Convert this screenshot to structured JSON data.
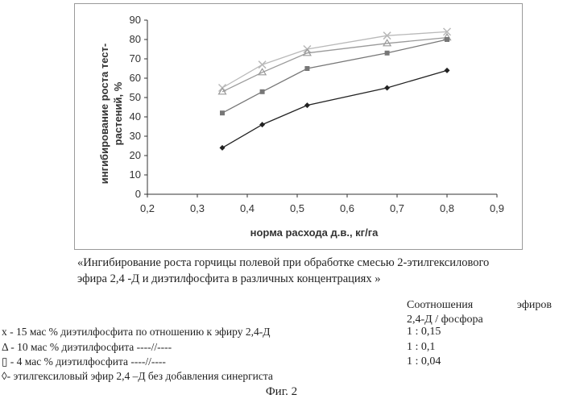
{
  "chart_data": {
    "type": "line",
    "xlabel": "норма расхода д.в., кг/га",
    "ylabel_line1": "ингибирование роста тест-",
    "ylabel_line2": "растений, %",
    "xlim": [
      0.2,
      0.9
    ],
    "ylim": [
      0,
      90
    ],
    "xticks": [
      "0,2",
      "0,3",
      "0,4",
      "0,5",
      "0,6",
      "0,7",
      "0,8",
      "0,9"
    ],
    "yticks": [
      "0",
      "10",
      "20",
      "30",
      "40",
      "50",
      "60",
      "70",
      "80",
      "90"
    ],
    "x": [
      0.35,
      0.43,
      0.52,
      0.68,
      0.8
    ],
    "series": [
      {
        "name": "x",
        "marker": "cross",
        "color": "#b9b9b9",
        "values": [
          55,
          67,
          75,
          82,
          84
        ]
      },
      {
        "name": "triangle",
        "marker": "triangle",
        "color": "#9a9a9a",
        "values": [
          53,
          63,
          73,
          78,
          81
        ]
      },
      {
        "name": "square",
        "marker": "square",
        "color": "#777777",
        "values": [
          42,
          53,
          65,
          73,
          80
        ]
      },
      {
        "name": "diamond",
        "marker": "diamond",
        "color": "#222222",
        "values": [
          24,
          36,
          46,
          55,
          64
        ]
      }
    ]
  },
  "caption": {
    "line1": "«Ингибирование роста горчицы полевой при обработке смесью 2-этилгексилового",
    "line2": "эфира 2,4 -Д и диэтилфосфита в различных концентрациях »"
  },
  "ratio_header": {
    "word1": "Соотношения",
    "word2": "эфиров",
    "line2": "2,4-Д / фосфора"
  },
  "legend": [
    {
      "text": "х -  15 мас % диэтилфосфита по отношению к эфиру 2,4-Д",
      "ratio": "1 : 0,15"
    },
    {
      "text": "Δ - 10 мас % диэтилфосфита  ----//----",
      "ratio": "1 : 0,1"
    },
    {
      "text": "▯ - 4 мас % диэтилфосфита  ----//----",
      "ratio": "1 : 0,04"
    },
    {
      "text": "◊- этилгексиловый эфир 2,4 –Д без добавления синергиста",
      "ratio": ""
    }
  ],
  "figure_label": "Фиг. 2"
}
